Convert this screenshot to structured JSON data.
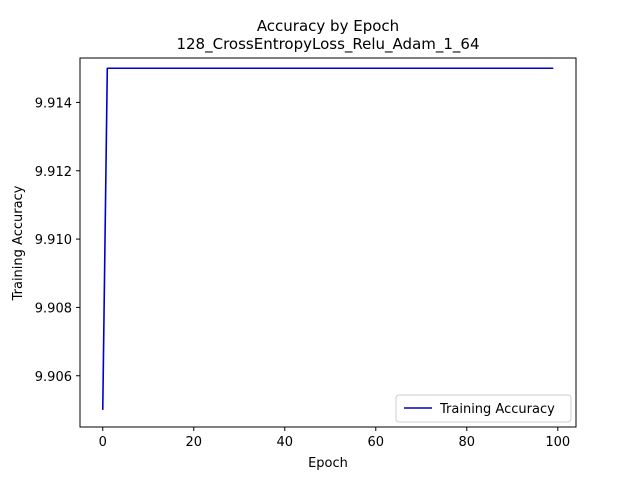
{
  "chart_data": {
    "type": "line",
    "title": "Accuracy by Epoch",
    "subtitle": "128_CrossEntropyLoss_Relu_Adam_1_64",
    "xlabel": "Epoch",
    "ylabel": "Training Accuracy",
    "xlim": [
      -5,
      104
    ],
    "ylim": [
      9.9045,
      9.9153
    ],
    "xticks": [
      0,
      20,
      40,
      60,
      80,
      100
    ],
    "yticks": [
      9.906,
      9.908,
      9.91,
      9.912,
      9.914
    ],
    "xtick_labels": [
      "0",
      "20",
      "40",
      "60",
      "80",
      "100"
    ],
    "ytick_labels": [
      "9.906",
      "9.908",
      "9.910",
      "9.912",
      "9.914"
    ],
    "grid": false,
    "legend_position": "lower-right",
    "series": [
      {
        "name": "Training Accuracy",
        "color": "#0000cc",
        "x": [
          0,
          1,
          2,
          99
        ],
        "y": [
          9.905,
          9.915,
          9.915,
          9.915
        ]
      }
    ]
  }
}
